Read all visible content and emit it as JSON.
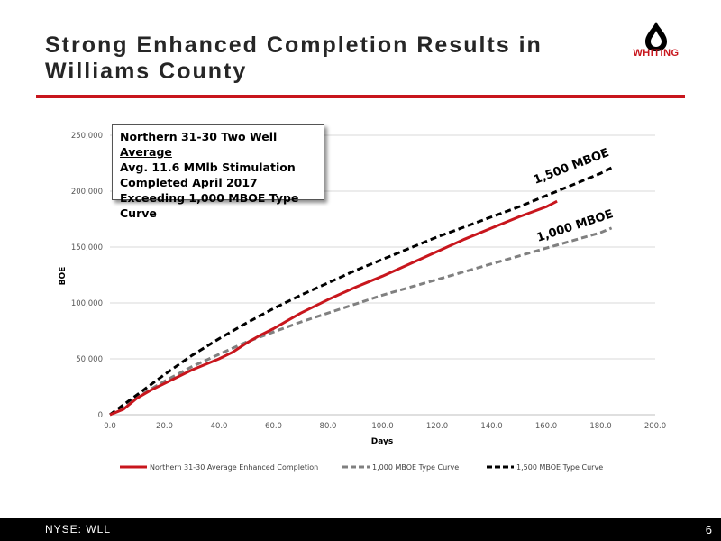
{
  "slide": {
    "title_line1": "Strong Enhanced Completion Results in",
    "title_line2": "Williams County",
    "logo_text": "WHITING",
    "footer_left": "NYSE:  WLL",
    "page_number": "6",
    "accent_color": "#c8161d"
  },
  "callout": {
    "lines": [
      "Northern 31-30 Two Well Average",
      "Avg. 11.6 MMlb Stimulation",
      "Completed April 2017",
      "Exceeding 1,000 MBOE Type Curve"
    ]
  },
  "chart_data": {
    "type": "line",
    "xlabel": "Days",
    "ylabel": "BOE",
    "xlim": [
      0,
      200
    ],
    "ylim": [
      0,
      250000
    ],
    "x_ticks": [
      "0.0",
      "20.0",
      "40.0",
      "60.0",
      "80.0",
      "100.0",
      "120.0",
      "140.0",
      "160.0",
      "180.0",
      "200.0"
    ],
    "y_ticks": [
      "0",
      "50,000",
      "100,000",
      "150,000",
      "200,000",
      "250,000"
    ],
    "grid": "horizontal",
    "legend_position": "bottom",
    "annotations": [
      "1,500 MBOE",
      "1,000 MBOE"
    ],
    "series": [
      {
        "name": "Northern 31-30 Average Enhanced Completion",
        "color": "#c8161d",
        "dash": "solid",
        "x": [
          0,
          5,
          10,
          15,
          20,
          30,
          40,
          45,
          50,
          55,
          60,
          65,
          70,
          80,
          90,
          100,
          110,
          120,
          130,
          140,
          150,
          160,
          164
        ],
        "y": [
          0,
          5000,
          15000,
          22000,
          28000,
          40000,
          50000,
          56000,
          64000,
          71000,
          77000,
          84000,
          91000,
          103000,
          114000,
          124000,
          135000,
          146000,
          157000,
          167000,
          177000,
          186000,
          191000
        ]
      },
      {
        "name": "1,000 MBOE Type Curve",
        "color": "#808080",
        "dash": "dashed",
        "x": [
          0,
          10,
          20,
          30,
          40,
          50,
          60,
          70,
          80,
          90,
          100,
          110,
          120,
          130,
          140,
          150,
          160,
          170,
          180,
          184
        ],
        "y": [
          0,
          16000,
          30000,
          43000,
          54000,
          65000,
          74000,
          83000,
          91000,
          99000,
          107000,
          114000,
          121000,
          128000,
          135000,
          142000,
          149000,
          156000,
          163000,
          167000
        ]
      },
      {
        "name": "1,500 MBOE Type Curve",
        "color": "#000000",
        "dash": "dashed",
        "x": [
          0,
          10,
          20,
          30,
          40,
          50,
          60,
          70,
          80,
          90,
          100,
          110,
          120,
          130,
          140,
          150,
          160,
          170,
          180,
          184
        ],
        "y": [
          0,
          18000,
          36000,
          53000,
          68000,
          82000,
          95000,
          107000,
          118000,
          129000,
          139000,
          149000,
          159000,
          168000,
          177000,
          186000,
          196000,
          206000,
          216000,
          221000
        ]
      }
    ]
  }
}
